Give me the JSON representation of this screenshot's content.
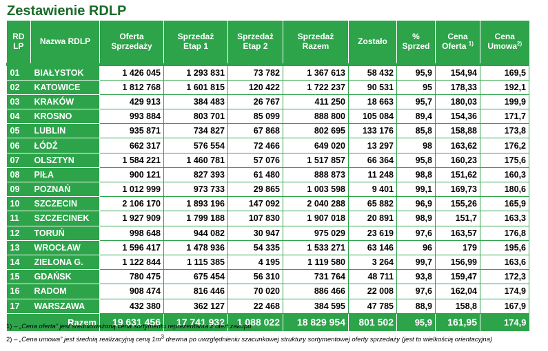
{
  "title": "Zestawienie RDLP",
  "headers": {
    "rdlp_line1": "RD",
    "rdlp_line2": "LP",
    "name": "Nazwa RDLP",
    "oferta_line1": "Oferta",
    "oferta_line2": "Sprzedaży",
    "etap1_line1": "Sprzedaż",
    "etap1_line2": "Etap 1",
    "etap2_line1": "Sprzedaż",
    "etap2_line2": "Etap 2",
    "razem_line1": "Sprzedaż",
    "razem_line2": "Razem",
    "zostalo": "Zostało",
    "proc_line1": "%",
    "proc_line2": "Sprzed",
    "cena_oferta_line1": "Cena",
    "cena_oferta_line2": "Oferta",
    "cena_oferta_sup": "1)",
    "cena_umowa_line1": "Cena",
    "cena_umowa_line2": "Umowa",
    "cena_umowa_sup": "2)"
  },
  "rows": [
    {
      "lp": "01",
      "name": "BIAŁYSTOK",
      "oferta": "1 426 045",
      "etap1": "1 293 831",
      "etap2": "73 782",
      "razem": "1 367 613",
      "zostalo": "58 432",
      "proc": "95,9",
      "cena_oferta": "154,94",
      "cena_umowa": "169,5"
    },
    {
      "lp": "02",
      "name": "KATOWICE",
      "oferta": "1 812 768",
      "etap1": "1 601 815",
      "etap2": "120 422",
      "razem": "1 722 237",
      "zostalo": "90 531",
      "proc": "95",
      "cena_oferta": "178,33",
      "cena_umowa": "192,1"
    },
    {
      "lp": "03",
      "name": "KRAKÓW",
      "oferta": "429 913",
      "etap1": "384 483",
      "etap2": "26 767",
      "razem": "411 250",
      "zostalo": "18 663",
      "proc": "95,7",
      "cena_oferta": "180,03",
      "cena_umowa": "199,9"
    },
    {
      "lp": "04",
      "name": "KROSNO",
      "oferta": "993 884",
      "etap1": "803 701",
      "etap2": "85 099",
      "razem": "888 800",
      "zostalo": "105 084",
      "proc": "89,4",
      "cena_oferta": "154,36",
      "cena_umowa": "171,7"
    },
    {
      "lp": "05",
      "name": "LUBLIN",
      "oferta": "935 871",
      "etap1": "734 827",
      "etap2": "67 868",
      "razem": "802 695",
      "zostalo": "133 176",
      "proc": "85,8",
      "cena_oferta": "158,88",
      "cena_umowa": "173,8"
    },
    {
      "lp": "06",
      "name": "ŁÓDŹ",
      "oferta": "662 317",
      "etap1": "576 554",
      "etap2": "72 466",
      "razem": "649 020",
      "zostalo": "13 297",
      "proc": "98",
      "cena_oferta": "163,62",
      "cena_umowa": "176,2"
    },
    {
      "lp": "07",
      "name": "OLSZTYN",
      "oferta": "1 584 221",
      "etap1": "1 460 781",
      "etap2": "57 076",
      "razem": "1 517 857",
      "zostalo": "66 364",
      "proc": "95,8",
      "cena_oferta": "160,23",
      "cena_umowa": "175,6"
    },
    {
      "lp": "08",
      "name": "PIŁA",
      "oferta": "900 121",
      "etap1": "827 393",
      "etap2": "61 480",
      "razem": "888 873",
      "zostalo": "11 248",
      "proc": "98,8",
      "cena_oferta": "151,62",
      "cena_umowa": "160,3"
    },
    {
      "lp": "09",
      "name": "POZNAŃ",
      "oferta": "1 012 999",
      "etap1": "973 733",
      "etap2": "29 865",
      "razem": "1 003 598",
      "zostalo": "9 401",
      "proc": "99,1",
      "cena_oferta": "169,73",
      "cena_umowa": "180,6"
    },
    {
      "lp": "10",
      "name": "SZCZECIN",
      "oferta": "2 106 170",
      "etap1": "1 893 196",
      "etap2": "147 092",
      "razem": "2 040 288",
      "zostalo": "65 882",
      "proc": "96,9",
      "cena_oferta": "155,26",
      "cena_umowa": "165,9"
    },
    {
      "lp": "11",
      "name": "SZCZECINEK",
      "oferta": "1 927 909",
      "etap1": "1 799 188",
      "etap2": "107 830",
      "razem": "1 907 018",
      "zostalo": "20 891",
      "proc": "98,9",
      "cena_oferta": "151,7",
      "cena_umowa": "163,3"
    },
    {
      "lp": "12",
      "name": "TORUŃ",
      "oferta": "998 648",
      "etap1": "944 082",
      "etap2": "30 947",
      "razem": "975 029",
      "zostalo": "23 619",
      "proc": "97,6",
      "cena_oferta": "163,57",
      "cena_umowa": "176,8"
    },
    {
      "lp": "13",
      "name": "WROCŁAW",
      "oferta": "1 596 417",
      "etap1": "1 478 936",
      "etap2": "54 335",
      "razem": "1 533 271",
      "zostalo": "63 146",
      "proc": "96",
      "cena_oferta": "179",
      "cena_umowa": "195,6"
    },
    {
      "lp": "14",
      "name": "ZIELONA G.",
      "oferta": "1 122 844",
      "etap1": "1 115 385",
      "etap2": "4 195",
      "razem": "1 119 580",
      "zostalo": "3 264",
      "proc": "99,7",
      "cena_oferta": "156,99",
      "cena_umowa": "163,6"
    },
    {
      "lp": "15",
      "name": "GDAŃSK",
      "oferta": "780 475",
      "etap1": "675 454",
      "etap2": "56 310",
      "razem": "731 764",
      "zostalo": "48 711",
      "proc": "93,8",
      "cena_oferta": "159,47",
      "cena_umowa": "172,3"
    },
    {
      "lp": "16",
      "name": "RADOM",
      "oferta": "908 474",
      "etap1": "816 446",
      "etap2": "70 020",
      "razem": "886 466",
      "zostalo": "22 008",
      "proc": "97,6",
      "cena_oferta": "162,04",
      "cena_umowa": "174,9"
    },
    {
      "lp": "17",
      "name": "WARSZAWA",
      "oferta": "432 380",
      "etap1": "362 127",
      "etap2": "22 468",
      "razem": "384 595",
      "zostalo": "47 785",
      "proc": "88,9",
      "cena_oferta": "158,8",
      "cena_umowa": "167,9"
    }
  ],
  "total": {
    "label": "Razem",
    "oferta": "19 631 456",
    "etap1": "17 741 932",
    "etap2": "1 088 022",
    "razem": "18 829 954",
    "zostalo": "801 502",
    "proc": "95,9",
    "cena_oferta": "161,95",
    "cena_umowa": "174,9"
  },
  "footnotes": {
    "fn1_marker": "1) – ",
    "fn1_term": "„Cena oferta”",
    "fn1_text": " jest średnioważoną cena sortymentu reprezentanta z ofert zakupu",
    "fn2_marker": "2) – ",
    "fn2_term": "„Cena umowa”",
    "fn2_text_a": "  jest średnią realizacyjną ceną 1m",
    "fn2_sup": "3",
    "fn2_text_b": " drewna po uwzględnieniu szacunkowej struktury sortymentowej oferty sprzedaży (jest  to wielkością orientacyjna)"
  },
  "colors": {
    "header_green": "#2da44a",
    "title_green": "#1a6b2a"
  }
}
